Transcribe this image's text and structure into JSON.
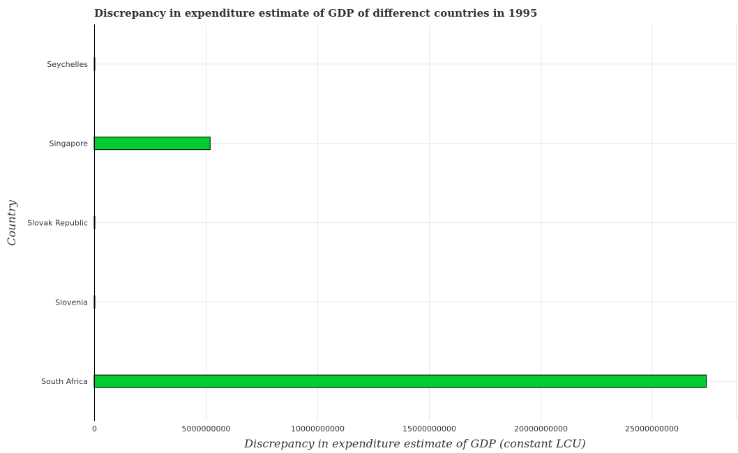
{
  "chart_data": {
    "type": "bar",
    "orientation": "horizontal",
    "title": "Discrepancy in expenditure estimate of GDP of differenct countries in 1995",
    "xlabel": "Discrepancy in expenditure estimate of GDP (constant LCU)",
    "ylabel": "Country",
    "categories": [
      "Seychelles",
      "Singapore",
      "Slovak Republic",
      "Slovenia",
      "South Africa"
    ],
    "values": [
      10000000,
      5200000000,
      0,
      0,
      27440000000
    ],
    "xlim": [
      0,
      28800000000
    ],
    "xticks": [
      0,
      5000000000,
      10000000000,
      15000000000,
      20000000000,
      25000000000
    ],
    "xtick_labels": [
      "0",
      "5000000000",
      "10000000000",
      "15000000000",
      "20000000000",
      "25000000000"
    ],
    "grid": true,
    "bar_color": "#00cc33"
  }
}
